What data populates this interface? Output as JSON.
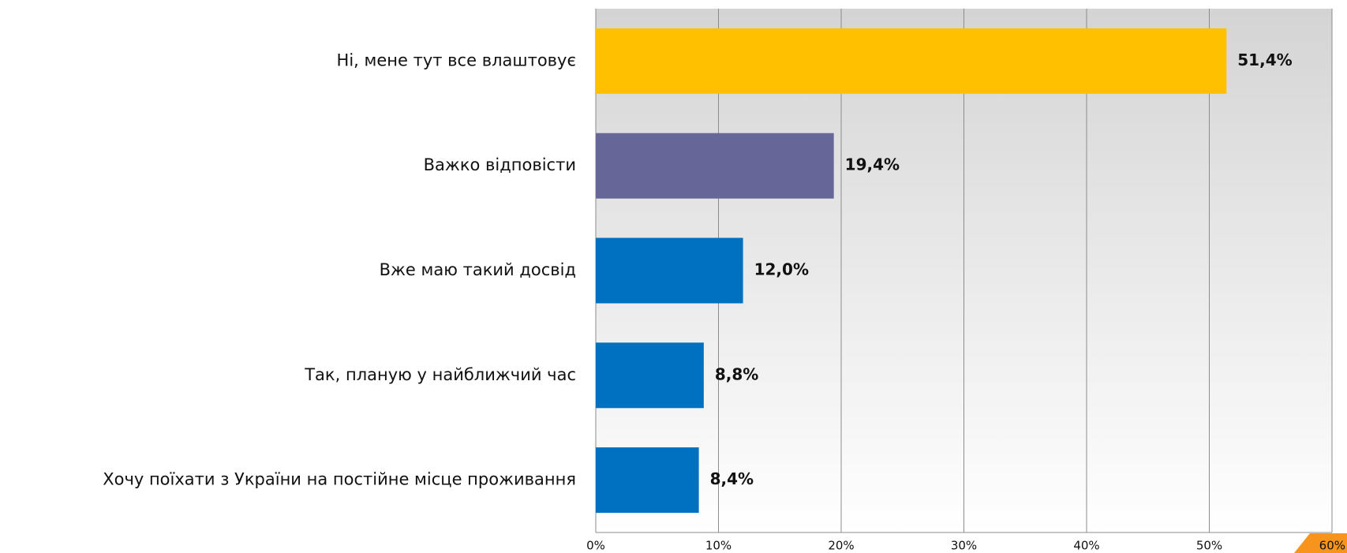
{
  "chart_data": {
    "type": "bar",
    "orientation": "horizontal",
    "categories": [
      "Ні, мене тут все влаштовує",
      "Важко відповісти",
      "Вже маю такий досвід",
      "Так, планую у найближчий час",
      "Хочу поїхати з України на постійне місце проживання"
    ],
    "values": [
      51.4,
      19.4,
      12.0,
      8.8,
      8.4
    ],
    "value_labels": [
      "51,4%",
      "19,4%",
      "12,0%",
      "8,8%",
      "8,4%"
    ],
    "colors": [
      "#ffc000",
      "#666699",
      "#0070c0",
      "#0070c0",
      "#0070c0"
    ],
    "xlim": [
      0,
      60
    ],
    "xticks": [
      {
        "value": 0,
        "label": "0%"
      },
      {
        "value": 10,
        "label": "10%"
      },
      {
        "value": 20,
        "label": "20%"
      },
      {
        "value": 30,
        "label": "30%"
      },
      {
        "value": 40,
        "label": "40%"
      },
      {
        "value": 50,
        "label": "50%"
      },
      {
        "value": 60,
        "label": "60%"
      }
    ],
    "grid": true
  }
}
